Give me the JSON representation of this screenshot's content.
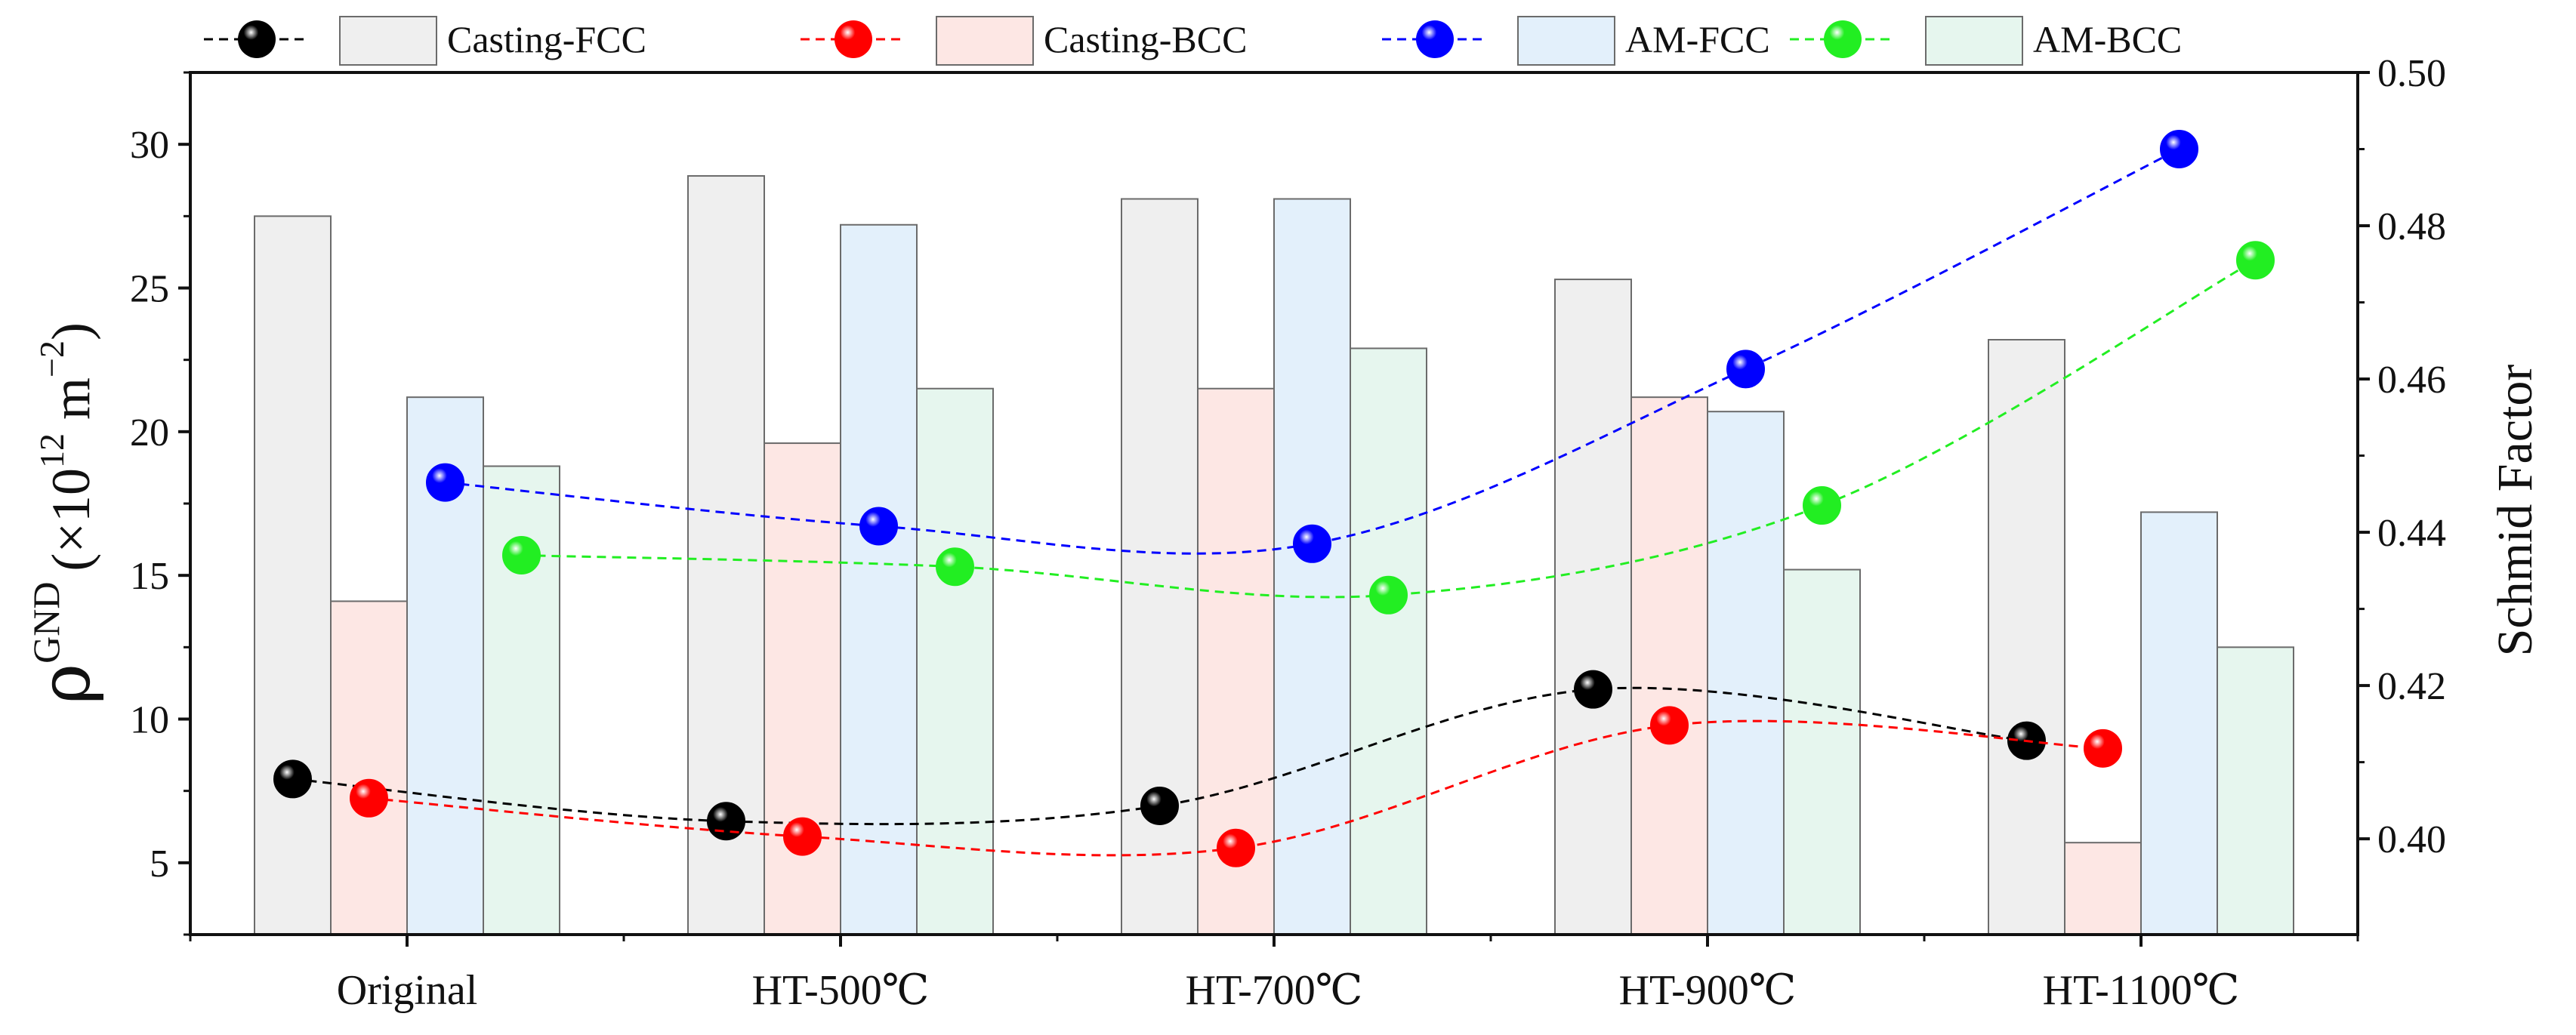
{
  "chart_data": {
    "type": "bar",
    "title": "",
    "categories": [
      "Original",
      "HT-500℃",
      "HT-700℃",
      "HT-900℃",
      "HT-1100℃"
    ],
    "xlabel": "",
    "ylabel": {
      "base": "ρ",
      "superscript": "GND",
      "unit_open": "(×10",
      "unit_exp": "12",
      "unit_mid": " m",
      "unit_exp2": "−2",
      "unit_close": ")"
    },
    "y2label": "Schmid Factor",
    "ylim": [
      2.5,
      32.5
    ],
    "y2lim": [
      0.3875,
      0.5
    ],
    "yticks": [
      5,
      10,
      15,
      20,
      25,
      30
    ],
    "y2ticks": [
      0.4,
      0.42,
      0.44,
      0.46,
      0.48,
      0.5
    ],
    "y2tick_labels": [
      "0.40",
      "0.42",
      "0.44",
      "0.46",
      "0.48",
      "0.50"
    ],
    "series": [
      {
        "name": "Casting-FCC",
        "kind": "bar",
        "axis": "left",
        "color": "#efefef",
        "values": [
          27.5,
          28.9,
          28.1,
          25.3,
          23.2
        ]
      },
      {
        "name": "Casting-BCC",
        "kind": "bar",
        "axis": "left",
        "color": "#fde7e4",
        "values": [
          14.1,
          19.6,
          21.5,
          21.2,
          5.7
        ]
      },
      {
        "name": "AM-FCC",
        "kind": "bar",
        "axis": "left",
        "color": "#e3f0fb",
        "values": [
          21.2,
          27.2,
          28.1,
          20.7,
          17.2
        ]
      },
      {
        "name": "AM-BCC",
        "kind": "bar",
        "axis": "left",
        "color": "#e6f6ee",
        "values": [
          18.8,
          21.5,
          22.9,
          15.2,
          12.5
        ]
      },
      {
        "name": "Casting-FCC",
        "kind": "line",
        "axis": "right",
        "color": "#000000",
        "values": [
          0.4078,
          0.4023,
          0.4043,
          0.4195,
          0.4128
        ]
      },
      {
        "name": "Casting-BCC",
        "kind": "line",
        "axis": "right",
        "color": "#ff0000",
        "values": [
          0.4053,
          0.4003,
          0.3988,
          0.4148,
          0.4118
        ]
      },
      {
        "name": "AM-FCC",
        "kind": "line",
        "axis": "right",
        "color": "#0000ff",
        "values": [
          0.4465,
          0.4408,
          0.4385,
          0.4613,
          0.49
        ]
      },
      {
        "name": "AM-BCC",
        "kind": "line",
        "axis": "right",
        "color": "#22ee22",
        "values": [
          0.437,
          0.4355,
          0.4318,
          0.4435,
          0.4755
        ]
      }
    ],
    "legend": [
      {
        "label": "Casting-FCC",
        "kind": "line",
        "color": "#000000"
      },
      {
        "label": "Casting-FCC",
        "kind": "bar",
        "color": "#efefef"
      },
      {
        "label": "Casting-BCC",
        "kind": "line",
        "color": "#ff0000"
      },
      {
        "label": "Casting-BCC",
        "kind": "bar",
        "color": "#fde7e4"
      },
      {
        "label": "AM-FCC",
        "kind": "line",
        "color": "#0000ff"
      },
      {
        "label": "AM-FCC",
        "kind": "bar",
        "color": "#e3f0fb"
      },
      {
        "label": "AM-BCC",
        "kind": "line",
        "color": "#22ee22"
      },
      {
        "label": "AM-BCC",
        "kind": "bar",
        "color": "#e6f6ee"
      }
    ],
    "legend_position": "top"
  }
}
